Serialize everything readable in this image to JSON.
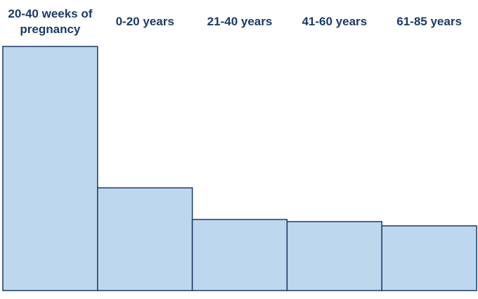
{
  "chart_data": {
    "type": "bar",
    "categories": [
      "20-40 weeks of pregnancy",
      "0-20 years",
      "21-40 years",
      "41-60 years",
      "61-85 years"
    ],
    "values": [
      347,
      146,
      101,
      98,
      92
    ],
    "color": "#bdd7ee",
    "edge_color": "#1b3a66"
  }
}
